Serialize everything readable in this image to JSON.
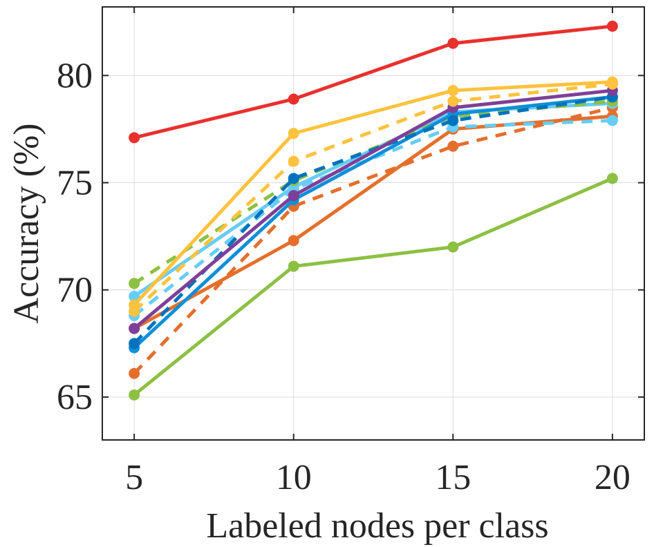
{
  "chart_data": {
    "type": "line",
    "title": "",
    "xlabel": "Labeled nodes per class",
    "ylabel": "Accuracy (%)",
    "x": [
      5,
      10,
      15,
      20
    ],
    "xticks": [
      "5",
      "10",
      "15",
      "20"
    ],
    "yticks": [
      "65",
      "70",
      "75",
      "80"
    ],
    "xlim": [
      4,
      21
    ],
    "ylim": [
      63,
      83.2
    ],
    "grid": true,
    "legend": "none",
    "series": [
      {
        "values": [
          77.1,
          78.9,
          81.5,
          82.3
        ],
        "color": "#e8312d",
        "style": "solid"
      },
      {
        "values": [
          69.3,
          77.3,
          79.3,
          79.7
        ],
        "color": "#fdc23e",
        "style": "solid"
      },
      {
        "values": [
          69.0,
          76.0,
          78.8,
          79.6
        ],
        "color": "#fdc23e",
        "style": "dashed"
      },
      {
        "values": [
          68.2,
          74.4,
          78.5,
          79.3
        ],
        "color": "#7e3f98",
        "style": "solid"
      },
      {
        "values": [
          67.5,
          75.2,
          77.9,
          79.0
        ],
        "color": "#0072bd",
        "style": "dashed"
      },
      {
        "values": [
          67.3,
          74.2,
          78.2,
          79.0
        ],
        "color": "#0f8fd8",
        "style": "solid"
      },
      {
        "values": [
          70.3,
          75.1,
          78.1,
          78.8
        ],
        "color": "#8cc043",
        "style": "dashed"
      },
      {
        "values": [
          69.7,
          74.8,
          78.3,
          78.7
        ],
        "color": "#66cdf6",
        "style": "solid"
      },
      {
        "values": [
          68.8,
          74.7,
          77.6,
          77.9
        ],
        "color": "#66cdf6",
        "style": "dashed"
      },
      {
        "values": [
          68.2,
          72.3,
          77.5,
          78.1
        ],
        "color": "#e46f2c",
        "style": "solid"
      },
      {
        "values": [
          66.1,
          73.9,
          76.7,
          78.5
        ],
        "color": "#e46f2c",
        "style": "dashed"
      },
      {
        "values": [
          65.1,
          71.1,
          72.0,
          75.2
        ],
        "color": "#8cc043",
        "style": "solid"
      }
    ]
  }
}
